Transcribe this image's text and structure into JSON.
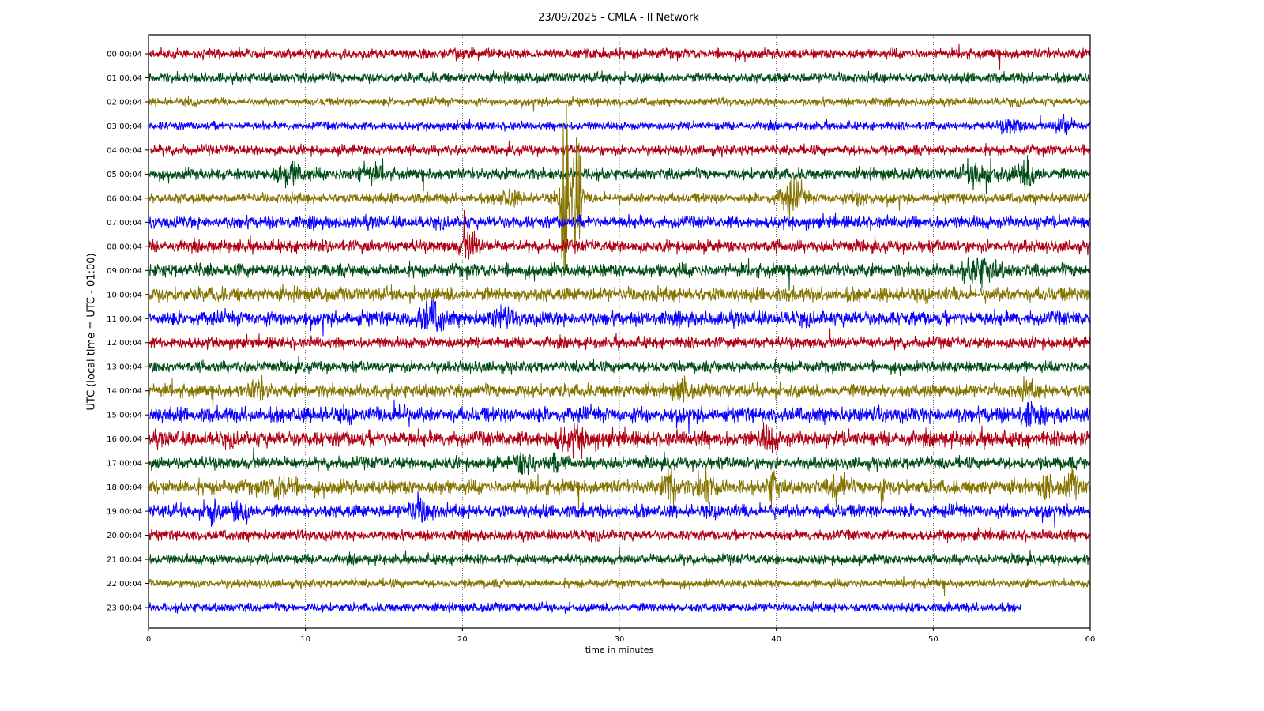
{
  "chart_data": {
    "type": "line",
    "subtype": "helicorder",
    "title": "23/09/2025 - CMLA - II Network",
    "xlabel": "time in minutes",
    "ylabel": "UTC (local time = UTC - 01:00)",
    "xlim": [
      0,
      60
    ],
    "xticks": [
      "0",
      "10",
      "20",
      "30",
      "40",
      "50",
      "60"
    ],
    "grid": "vertical dotted at x ticks",
    "row_labels": [
      "00:00:04",
      "01:00:04",
      "02:00:04",
      "03:00:04",
      "04:00:04",
      "05:00:04",
      "06:00:04",
      "07:00:04",
      "08:00:04",
      "09:00:04",
      "10:00:04",
      "11:00:04",
      "12:00:04",
      "13:00:04",
      "14:00:04",
      "15:00:04",
      "16:00:04",
      "17:00:04",
      "18:00:04",
      "19:00:04",
      "20:00:04",
      "21:00:04",
      "22:00:04",
      "23:00:04"
    ],
    "row_colors": [
      "#B00012",
      "#004D16",
      "#857300",
      "#0A00FF"
    ],
    "row_base_amplitude": [
      1,
      1,
      0.8,
      0.8,
      1,
      1.1,
      1,
      1.2,
      1.2,
      1.3,
      1.4,
      1.4,
      1.1,
      1.1,
      1.3,
      1.5,
      1.5,
      1.2,
      1.4,
      1.3,
      1,
      1,
      0.8,
      0.9
    ],
    "last_row_end_minute": 55.6,
    "events": [
      {
        "row": 3,
        "minute": 55,
        "amplitude": 2.5,
        "duration": 1.5
      },
      {
        "row": 3,
        "minute": 58.3,
        "amplitude": 3.5,
        "duration": 1.0
      },
      {
        "row": 5,
        "minute": 9,
        "amplitude": 2.5,
        "duration": 2.0
      },
      {
        "row": 5,
        "minute": 14,
        "amplitude": 2.2,
        "duration": 2.0
      },
      {
        "row": 5,
        "minute": 53,
        "amplitude": 3.0,
        "duration": 2.0
      },
      {
        "row": 5,
        "minute": 56,
        "amplitude": 3.2,
        "duration": 1.5
      },
      {
        "row": 6,
        "minute": 26.6,
        "amplitude": 28,
        "duration": 0.5
      },
      {
        "row": 6,
        "minute": 27.3,
        "amplitude": 20,
        "duration": 0.5
      },
      {
        "row": 6,
        "minute": 41,
        "amplitude": 4,
        "duration": 1.5
      },
      {
        "row": 6,
        "minute": 23,
        "amplitude": 2,
        "duration": 1.5
      },
      {
        "row": 6,
        "minute": 45.5,
        "amplitude": 2,
        "duration": 1.2
      },
      {
        "row": 8,
        "minute": 20.5,
        "amplitude": 3,
        "duration": 1.2
      },
      {
        "row": 9,
        "minute": 53,
        "amplitude": 2.5,
        "duration": 2.0
      },
      {
        "row": 11,
        "minute": 18,
        "amplitude": 3,
        "duration": 1.5
      },
      {
        "row": 11,
        "minute": 22.5,
        "amplitude": 2,
        "duration": 1.2
      },
      {
        "row": 14,
        "minute": 7,
        "amplitude": 2.2,
        "duration": 1.0
      },
      {
        "row": 14,
        "minute": 34,
        "amplitude": 2.2,
        "duration": 1.0
      },
      {
        "row": 14,
        "minute": 56,
        "amplitude": 1.8,
        "duration": 1.2
      },
      {
        "row": 15,
        "minute": 16,
        "amplitude": 1.8,
        "duration": 1.0
      },
      {
        "row": 15,
        "minute": 56,
        "amplitude": 2.0,
        "duration": 1.2
      },
      {
        "row": 16,
        "minute": 27,
        "amplitude": 2.0,
        "duration": 2.5
      },
      {
        "row": 16,
        "minute": 39.5,
        "amplitude": 2.2,
        "duration": 1.0
      },
      {
        "row": 17,
        "minute": 24,
        "amplitude": 2.5,
        "duration": 1.2
      },
      {
        "row": 17,
        "minute": 25.8,
        "amplitude": 2.5,
        "duration": 0.7
      },
      {
        "row": 18,
        "minute": 8.5,
        "amplitude": 2.2,
        "duration": 1.5
      },
      {
        "row": 18,
        "minute": 33.3,
        "amplitude": 4,
        "duration": 0.8
      },
      {
        "row": 18,
        "minute": 35.5,
        "amplitude": 3,
        "duration": 1.0
      },
      {
        "row": 18,
        "minute": 39.8,
        "amplitude": 3,
        "duration": 0.7
      },
      {
        "row": 18,
        "minute": 44,
        "amplitude": 3,
        "duration": 1.0
      },
      {
        "row": 18,
        "minute": 46.7,
        "amplitude": 4,
        "duration": 0.3
      },
      {
        "row": 18,
        "minute": 57.2,
        "amplitude": 3,
        "duration": 0.5
      },
      {
        "row": 18,
        "minute": 58.8,
        "amplitude": 2.5,
        "duration": 0.8
      },
      {
        "row": 19,
        "minute": 4,
        "amplitude": 2.5,
        "duration": 0.8
      },
      {
        "row": 19,
        "minute": 5.5,
        "amplitude": 2.5,
        "duration": 0.4
      },
      {
        "row": 19,
        "minute": 6.3,
        "amplitude": 3,
        "duration": 0.5
      },
      {
        "row": 19,
        "minute": 17.3,
        "amplitude": 2.5,
        "duration": 1.5
      }
    ]
  }
}
